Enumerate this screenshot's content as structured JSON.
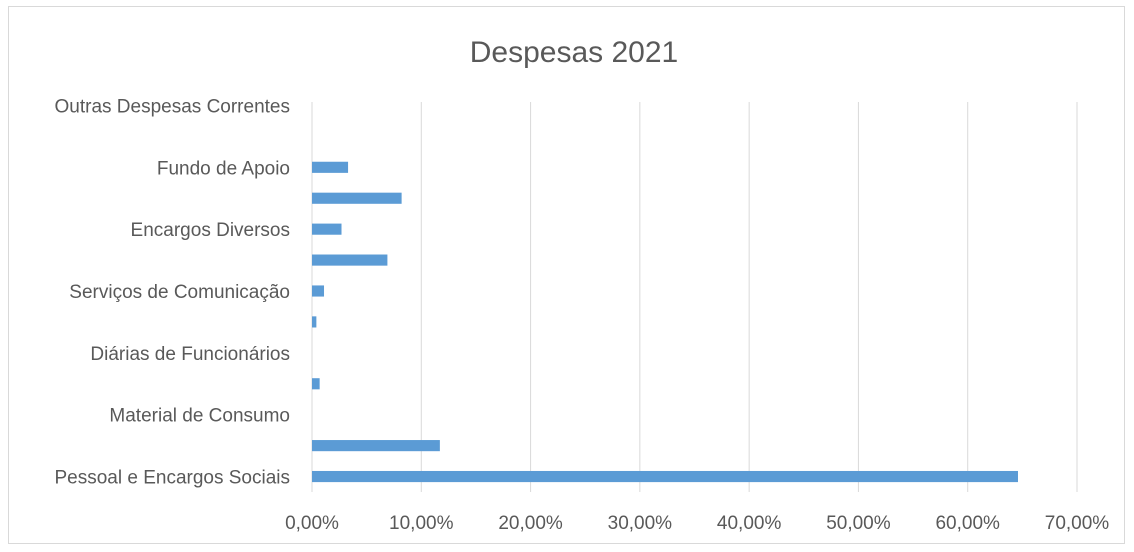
{
  "chart_data": {
    "type": "bar",
    "orientation": "horizontal",
    "title": "Despesas 2021",
    "xlabel": "",
    "ylabel": "",
    "xlim": [
      0,
      70
    ],
    "x_ticks": [
      0,
      10,
      20,
      30,
      40,
      50,
      60,
      70
    ],
    "x_tick_labels": [
      "0,00%",
      "10,00%",
      "20,00%",
      "30,00%",
      "40,00%",
      "50,00%",
      "60,00%",
      "70,00%"
    ],
    "grid": "vertical",
    "legend": "none",
    "bar_color": "#5b9bd5",
    "categories": [
      "Pessoal e Encargos Sociais",
      "",
      "Material de Consumo",
      "",
      "Diárias de Funcionários",
      "",
      "Serviços de Comunicação",
      "",
      "Encargos Diversos",
      "",
      "Fundo de Apoio",
      "",
      "Outras Despesas Correntes"
    ],
    "values": [
      64.6,
      11.7,
      0,
      0.7,
      0,
      0.4,
      1.1,
      6.9,
      2.7,
      8.2,
      3.3,
      0,
      0
    ]
  }
}
